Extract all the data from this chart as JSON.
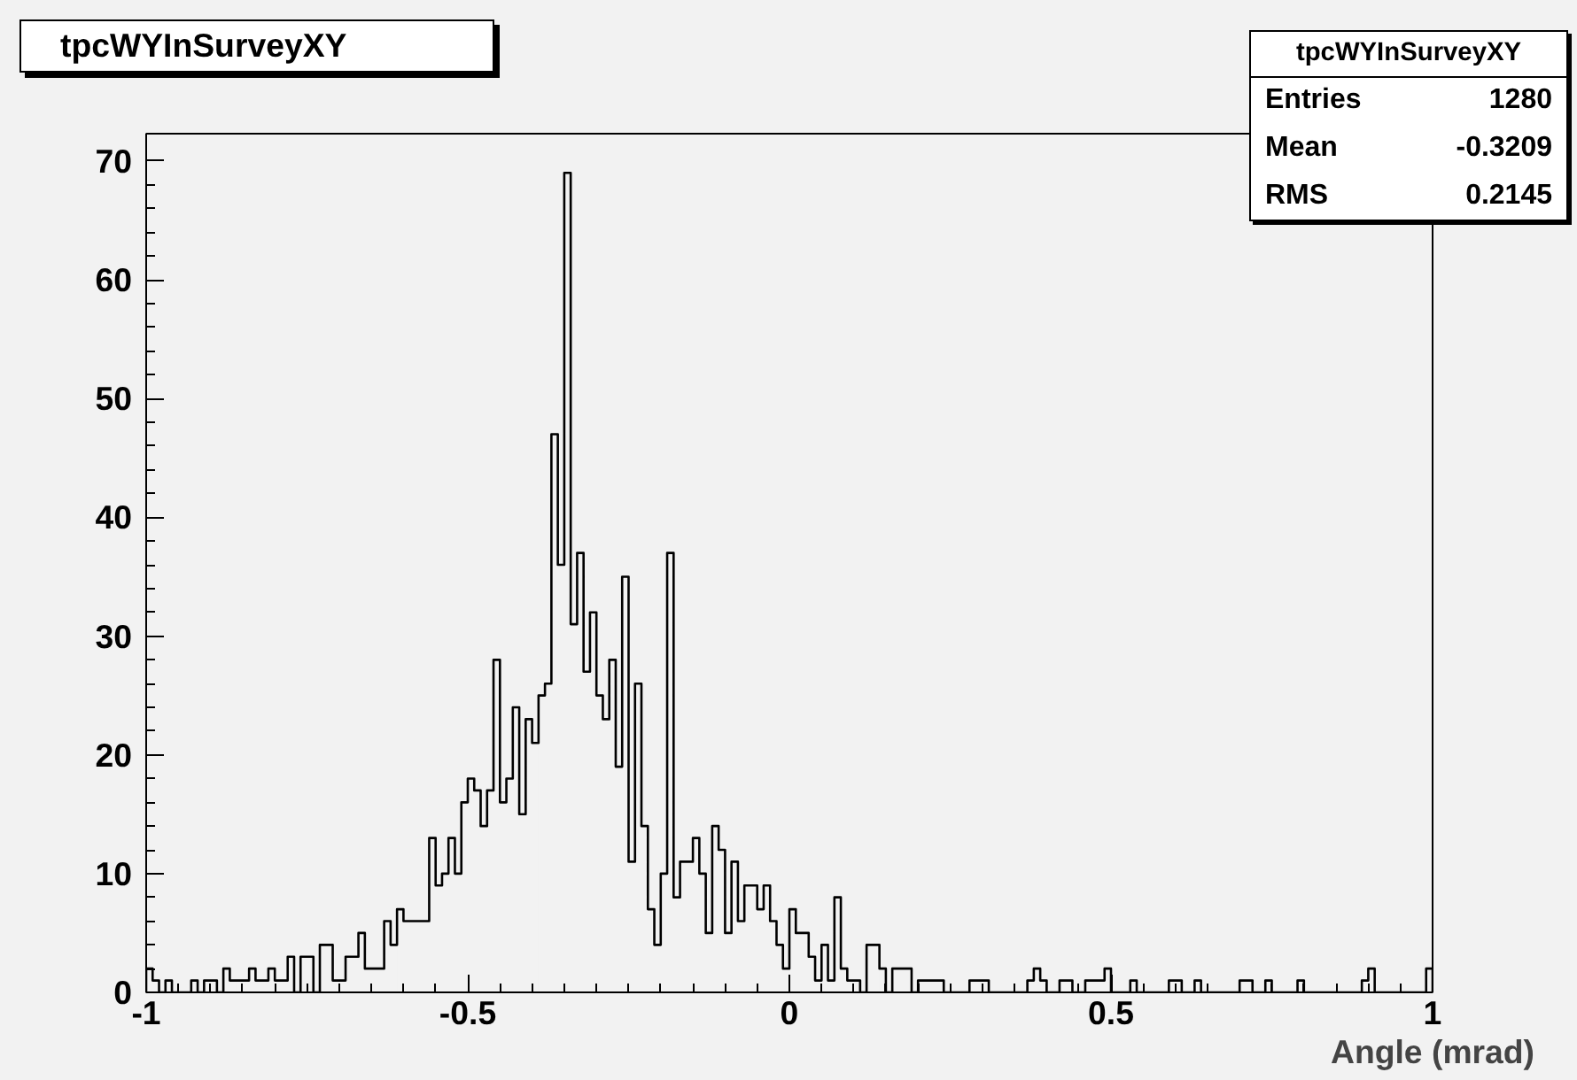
{
  "chart_data": {
    "type": "histogram",
    "title": "tpcWYInSurveyXY",
    "xlabel": "Angle (mrad)",
    "bins": [
      -1.0,
      -0.99,
      -0.98,
      -0.97,
      -0.96,
      -0.95,
      -0.94,
      -0.93,
      -0.92,
      -0.91,
      -0.9,
      -0.89,
      -0.88,
      -0.87,
      -0.86,
      -0.85,
      -0.84,
      -0.83,
      -0.82,
      -0.81,
      -0.8,
      -0.79,
      -0.78,
      -0.77,
      -0.76,
      -0.75,
      -0.74,
      -0.73,
      -0.72,
      -0.71,
      -0.7,
      -0.69,
      -0.68,
      -0.67,
      -0.66,
      -0.65,
      -0.64,
      -0.63,
      -0.62,
      -0.61,
      -0.6,
      -0.59,
      -0.58,
      -0.57,
      -0.56,
      -0.55,
      -0.54,
      -0.53,
      -0.52,
      -0.51,
      -0.5,
      -0.49,
      -0.48,
      -0.47,
      -0.46,
      -0.45,
      -0.44,
      -0.43,
      -0.42,
      -0.41,
      -0.4,
      -0.39,
      -0.38,
      -0.37,
      -0.36,
      -0.35,
      -0.34,
      -0.33,
      -0.32,
      -0.31,
      -0.3,
      -0.29,
      -0.28,
      -0.27,
      -0.26,
      -0.25,
      -0.24,
      -0.23,
      -0.22,
      -0.21,
      -0.2,
      -0.19,
      -0.18,
      -0.17,
      -0.16,
      -0.15,
      -0.14,
      -0.13,
      -0.12,
      -0.11,
      -0.1,
      -0.09,
      -0.08,
      -0.07,
      -0.06,
      -0.05,
      -0.04,
      -0.03,
      -0.02,
      -0.01,
      0.0,
      0.01,
      0.02,
      0.03,
      0.04,
      0.05,
      0.06,
      0.07,
      0.08,
      0.09,
      0.1,
      0.11,
      0.12,
      0.13,
      0.14,
      0.15,
      0.16,
      0.17,
      0.18,
      0.19,
      0.2,
      0.21,
      0.22,
      0.23,
      0.24,
      0.25,
      0.26,
      0.27,
      0.28,
      0.29,
      0.3,
      0.31,
      0.32,
      0.33,
      0.34,
      0.35,
      0.36,
      0.37,
      0.38,
      0.39,
      0.4,
      0.41,
      0.42,
      0.43,
      0.44,
      0.45,
      0.46,
      0.47,
      0.48,
      0.49,
      0.5,
      0.51,
      0.52,
      0.53,
      0.54,
      0.55,
      0.56,
      0.57,
      0.58,
      0.59,
      0.6,
      0.61,
      0.62,
      0.63,
      0.64,
      0.65,
      0.66,
      0.67,
      0.68,
      0.69,
      0.7,
      0.71,
      0.72,
      0.73,
      0.74,
      0.75,
      0.76,
      0.77,
      0.78,
      0.79,
      0.8,
      0.81,
      0.82,
      0.83,
      0.84,
      0.85,
      0.86,
      0.87,
      0.88,
      0.89,
      0.9,
      0.91,
      0.92,
      0.93,
      0.94,
      0.95,
      0.96,
      0.97,
      0.98,
      0.99,
      1.0
    ],
    "values": [
      2,
      1,
      0,
      1,
      0,
      0,
      0,
      1,
      0,
      1,
      1,
      0,
      2,
      1,
      1,
      1,
      2,
      1,
      1,
      2,
      1,
      1,
      3,
      0,
      3,
      3,
      0,
      4,
      4,
      1,
      1,
      3,
      3,
      5,
      2,
      2,
      2,
      6,
      4,
      7,
      6,
      6,
      6,
      6,
      13,
      9,
      10,
      13,
      10,
      16,
      18,
      17,
      14,
      17,
      28,
      16,
      18,
      24,
      15,
      23,
      21,
      25,
      26,
      47,
      36,
      69,
      31,
      37,
      27,
      32,
      25,
      23,
      28,
      19,
      35,
      11,
      26,
      14,
      7,
      4,
      10,
      37,
      8,
      11,
      11,
      13,
      10,
      5,
      14,
      12,
      5,
      11,
      6,
      9,
      9,
      7,
      9,
      6,
      4,
      2,
      7,
      5,
      5,
      3,
      1,
      4,
      1,
      8,
      2,
      1,
      1,
      0,
      4,
      4,
      2,
      0,
      2,
      2,
      2,
      0,
      1,
      1,
      1,
      1,
      0,
      0,
      0,
      0,
      1,
      1,
      1,
      0,
      0,
      0,
      0,
      0,
      0,
      1,
      2,
      1,
      0,
      0,
      1,
      1,
      0,
      0,
      1,
      1,
      1,
      2,
      0,
      0,
      0,
      1,
      0,
      0,
      0,
      0,
      0,
      1,
      1,
      0,
      0,
      1,
      0,
      0,
      0,
      0,
      0,
      0,
      1,
      1,
      0,
      0,
      1,
      0,
      0,
      0,
      0,
      1,
      0,
      0,
      0,
      0,
      0,
      0,
      0,
      0,
      0,
      1,
      2,
      0,
      0,
      0,
      0,
      0,
      0,
      0,
      0,
      2
    ],
    "color": "#000000",
    "xlim": [
      -1,
      1
    ],
    "xticks": [
      {
        "value": -1,
        "label": "-1"
      },
      {
        "value": -0.5,
        "label": "-0.5"
      },
      0,
      {
        "value": 0.5,
        "label": "0.5"
      },
      1
    ],
    "ylim": [
      0,
      72.3
    ],
    "yticks": [
      0,
      10,
      20,
      30,
      40,
      50,
      60,
      70
    ],
    "grid": false,
    "annotations": [
      "Entries 1280",
      "Mean -0.3209",
      "RMS 0.2145"
    ]
  }
}
